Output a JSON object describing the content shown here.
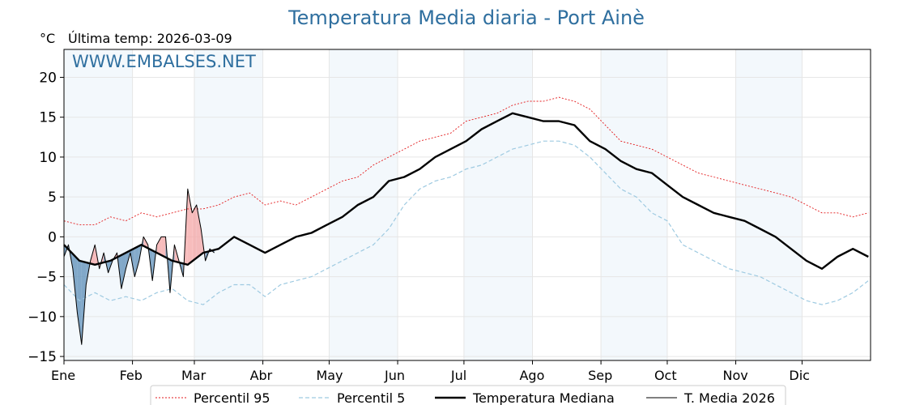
{
  "title": "Temperatura Media diaria - Port Ainè",
  "unit_label": "°C",
  "last_temp_label": "Última temp: 2026-03-09",
  "watermark": "WWW.EMBALSES.NET",
  "chart_data": {
    "type": "line",
    "title": "Temperatura Media diaria - Port Ainè",
    "ylabel": "°C",
    "ylim": [
      -15.5,
      23.5
    ],
    "xlim": [
      1,
      366
    ],
    "yticks": [
      -15,
      -10,
      -5,
      0,
      5,
      10,
      15,
      20
    ],
    "x_tick_labels": [
      "Ene",
      "Feb",
      "Mar",
      "Abr",
      "May",
      "Jun",
      "Jul",
      "Ago",
      "Sep",
      "Oct",
      "Nov",
      "Dic"
    ],
    "month_start_days": [
      1,
      32,
      60,
      91,
      121,
      152,
      182,
      213,
      244,
      274,
      305,
      335
    ],
    "grid": true,
    "legend_position": "bottom",
    "series": [
      {
        "name": "Percentil 95",
        "style": "dotted",
        "color": "#e31a1c",
        "x": [
          1,
          8,
          15,
          22,
          29,
          36,
          43,
          50,
          57,
          64,
          71,
          78,
          85,
          92,
          99,
          106,
          113,
          120,
          127,
          134,
          141,
          148,
          155,
          162,
          169,
          176,
          183,
          190,
          197,
          204,
          211,
          218,
          225,
          232,
          239,
          246,
          253,
          260,
          267,
          274,
          281,
          288,
          295,
          302,
          309,
          316,
          323,
          330,
          337,
          344,
          351,
          358,
          365
        ],
        "values": [
          2,
          1.5,
          1.5,
          2.5,
          2,
          3,
          2.5,
          3,
          3.5,
          3.5,
          4,
          5,
          5.5,
          4,
          4.5,
          4,
          5,
          6,
          7,
          7.5,
          9,
          10,
          11,
          12,
          12.5,
          13,
          14.5,
          15,
          15.5,
          16.5,
          17,
          17,
          17.5,
          17,
          16,
          14,
          12,
          11.5,
          11,
          10,
          9,
          8,
          7.5,
          7,
          6.5,
          6,
          5.5,
          5,
          4,
          3,
          3,
          2.5,
          3
        ]
      },
      {
        "name": "Percentil 5",
        "style": "dashed",
        "color": "#9ecae1",
        "x": [
          1,
          8,
          15,
          22,
          29,
          36,
          43,
          50,
          57,
          64,
          71,
          78,
          85,
          92,
          99,
          106,
          113,
          120,
          127,
          134,
          141,
          148,
          155,
          162,
          169,
          176,
          183,
          190,
          197,
          204,
          211,
          218,
          225,
          232,
          239,
          246,
          253,
          260,
          267,
          274,
          281,
          288,
          295,
          302,
          309,
          316,
          323,
          330,
          337,
          344,
          351,
          358,
          365
        ],
        "values": [
          -6,
          -8,
          -7,
          -8,
          -7.5,
          -8,
          -7,
          -6.5,
          -8,
          -8.5,
          -7,
          -6,
          -6,
          -7.5,
          -6,
          -5.5,
          -5,
          -4,
          -3,
          -2,
          -1,
          1,
          4,
          6,
          7,
          7.5,
          8.5,
          9,
          10,
          11,
          11.5,
          12,
          12,
          11.5,
          10,
          8,
          6,
          5,
          3,
          2,
          -1,
          -2,
          -3,
          -4,
          -4.5,
          -5,
          -6,
          -7,
          -8,
          -8.5,
          -8,
          -7,
          -5.5
        ]
      },
      {
        "name": "Temperatura Mediana",
        "style": "solid-thick",
        "color": "#000000",
        "x": [
          1,
          8,
          15,
          22,
          29,
          36,
          43,
          50,
          57,
          64,
          71,
          78,
          85,
          92,
          99,
          106,
          113,
          120,
          127,
          134,
          141,
          148,
          155,
          162,
          169,
          176,
          183,
          190,
          197,
          204,
          211,
          218,
          225,
          232,
          239,
          246,
          253,
          260,
          267,
          274,
          281,
          288,
          295,
          302,
          309,
          316,
          323,
          330,
          337,
          344,
          351,
          358,
          365
        ],
        "values": [
          -1,
          -3,
          -3.5,
          -3,
          -2,
          -1,
          -2,
          -3,
          -3.5,
          -2,
          -1.5,
          0,
          -1,
          -2,
          -1,
          0,
          0.5,
          1.5,
          2.5,
          4,
          5,
          7,
          7.5,
          8.5,
          10,
          11,
          12,
          13.5,
          14.5,
          15.5,
          15,
          14.5,
          14.5,
          14,
          12,
          11,
          9.5,
          8.5,
          8,
          6.5,
          5,
          4,
          3,
          2.5,
          2,
          1,
          0,
          -1.5,
          -3,
          -4,
          -2.5,
          -1.5,
          -2.5
        ]
      },
      {
        "name": "T. Media 2026",
        "style": "solid-thin",
        "color": "#000000",
        "x": [
          1,
          3,
          5,
          7,
          9,
          11,
          13,
          15,
          17,
          19,
          21,
          23,
          25,
          27,
          29,
          31,
          33,
          35,
          37,
          39,
          41,
          43,
          45,
          47,
          49,
          51,
          53,
          55,
          57,
          59,
          61,
          63,
          65,
          67,
          69
        ],
        "values": [
          -2.5,
          -1,
          -4,
          -9.5,
          -13.5,
          -6,
          -3,
          -1,
          -4,
          -2,
          -4.5,
          -3,
          -2,
          -6.5,
          -4,
          -2,
          -5,
          -3,
          0,
          -1,
          -5.5,
          -1,
          0,
          0,
          -7,
          -1,
          -3,
          -5,
          6,
          3,
          4,
          1,
          -3,
          -1.5,
          -2
        ]
      }
    ]
  },
  "legend": {
    "items": [
      {
        "label": "Percentil 95"
      },
      {
        "label": "Percentil 5"
      },
      {
        "label": "Temperatura Mediana"
      },
      {
        "label": "T. Media 2026"
      }
    ]
  }
}
